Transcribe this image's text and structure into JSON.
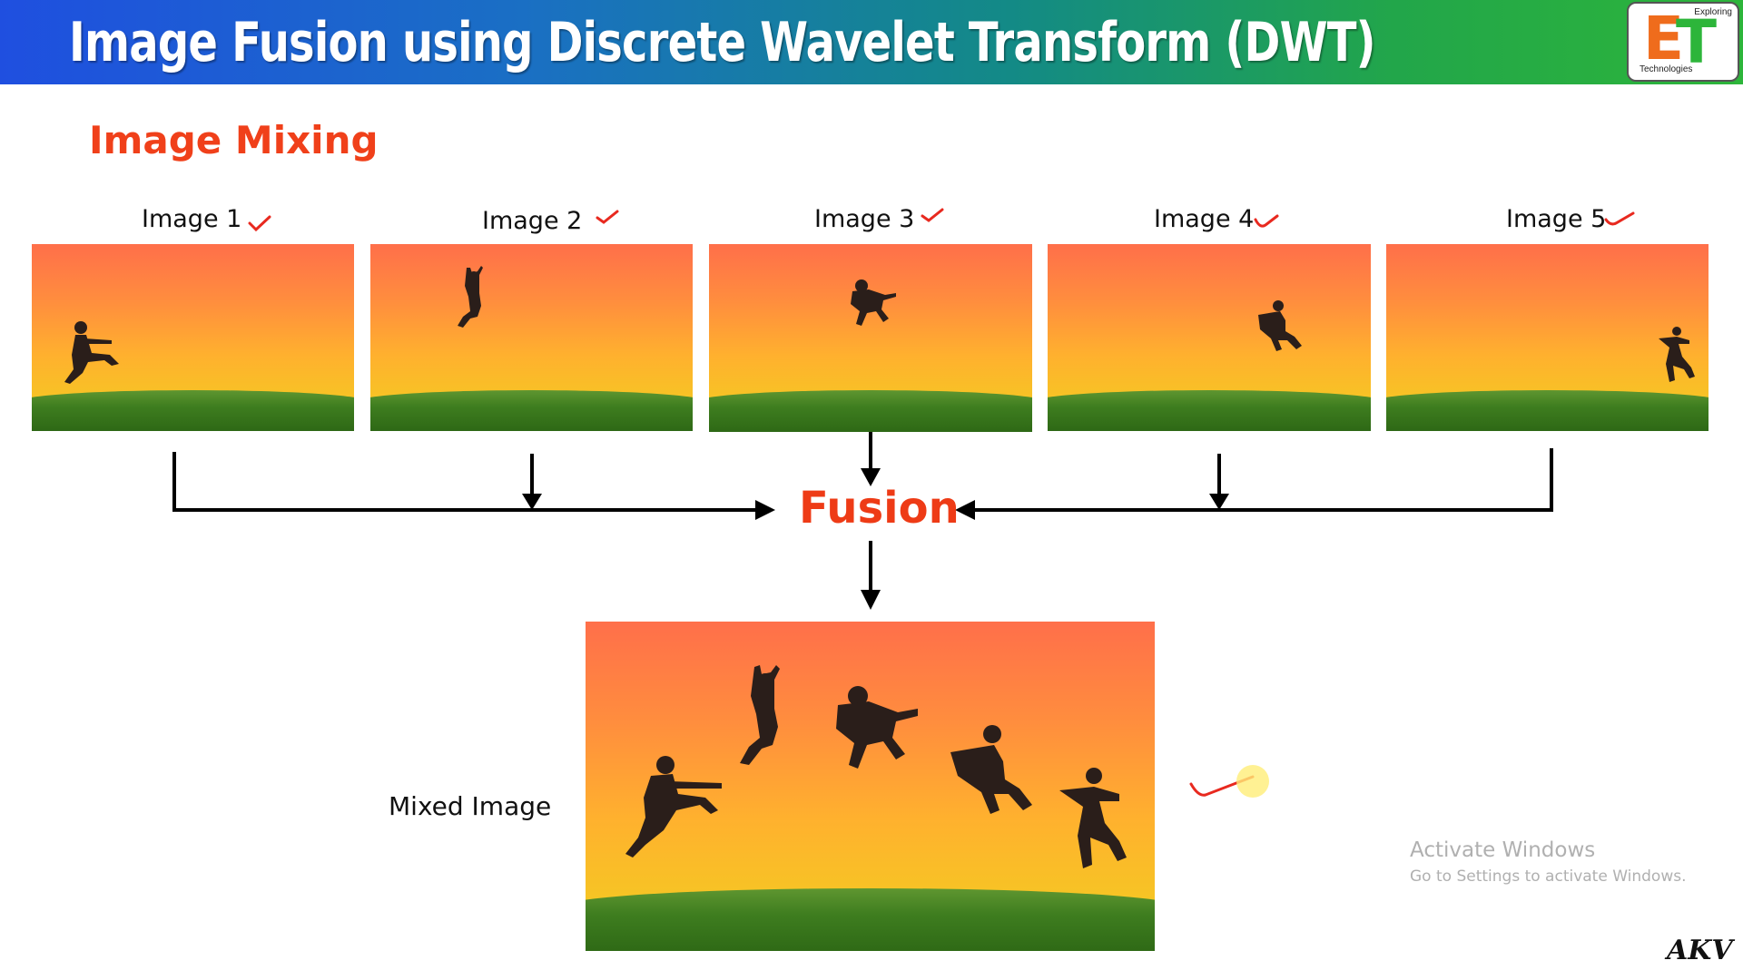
{
  "header": {
    "title": "Image Fusion using Discrete Wavelet Transform (DWT)",
    "logo": {
      "top_text": "Exploring",
      "letters": "ET",
      "bottom_text": "Technologies"
    }
  },
  "section_heading": "Image Mixing",
  "images": [
    {
      "label": "Image 1"
    },
    {
      "label": "Image 2"
    },
    {
      "label": "Image 3"
    },
    {
      "label": "Image 4"
    },
    {
      "label": "Image 5"
    }
  ],
  "fusion_label": "Fusion",
  "mixed_label": "Mixed Image",
  "watermark": {
    "title": "Activate Windows",
    "subtitle": "Go to Settings to activate Windows."
  },
  "signature": "AKV",
  "colors": {
    "heading_red": "#f0401a",
    "check_red": "#e8291f",
    "banner_start": "#1f4fe0",
    "banner_end": "#2db53a",
    "sky_top": "#ff6f4a",
    "sky_bottom": "#f1d027",
    "grass": "#3e7d1f"
  }
}
